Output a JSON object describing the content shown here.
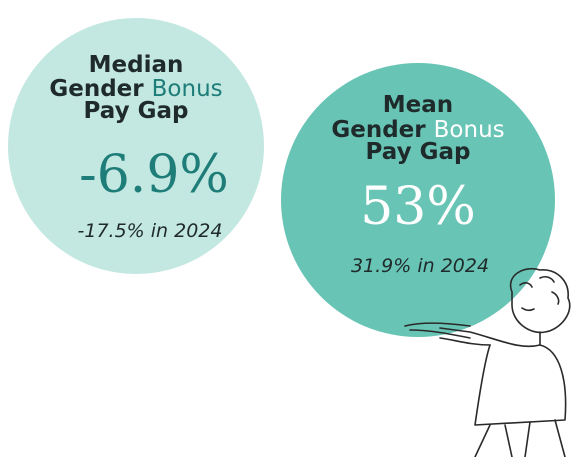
{
  "cards": [
    {
      "title": {
        "line1": "Median",
        "line2": "Gender",
        "highlight": "Bonus",
        "line3": "Pay Gap"
      },
      "value": "-6.9%",
      "comparison": "-17.5% in 2024"
    },
    {
      "title": {
        "line1": "Mean",
        "line2": "Gender",
        "highlight": "Bonus",
        "line3": "Pay Gap"
      },
      "value": "53%",
      "comparison": "31.9% in 2024"
    }
  ]
}
